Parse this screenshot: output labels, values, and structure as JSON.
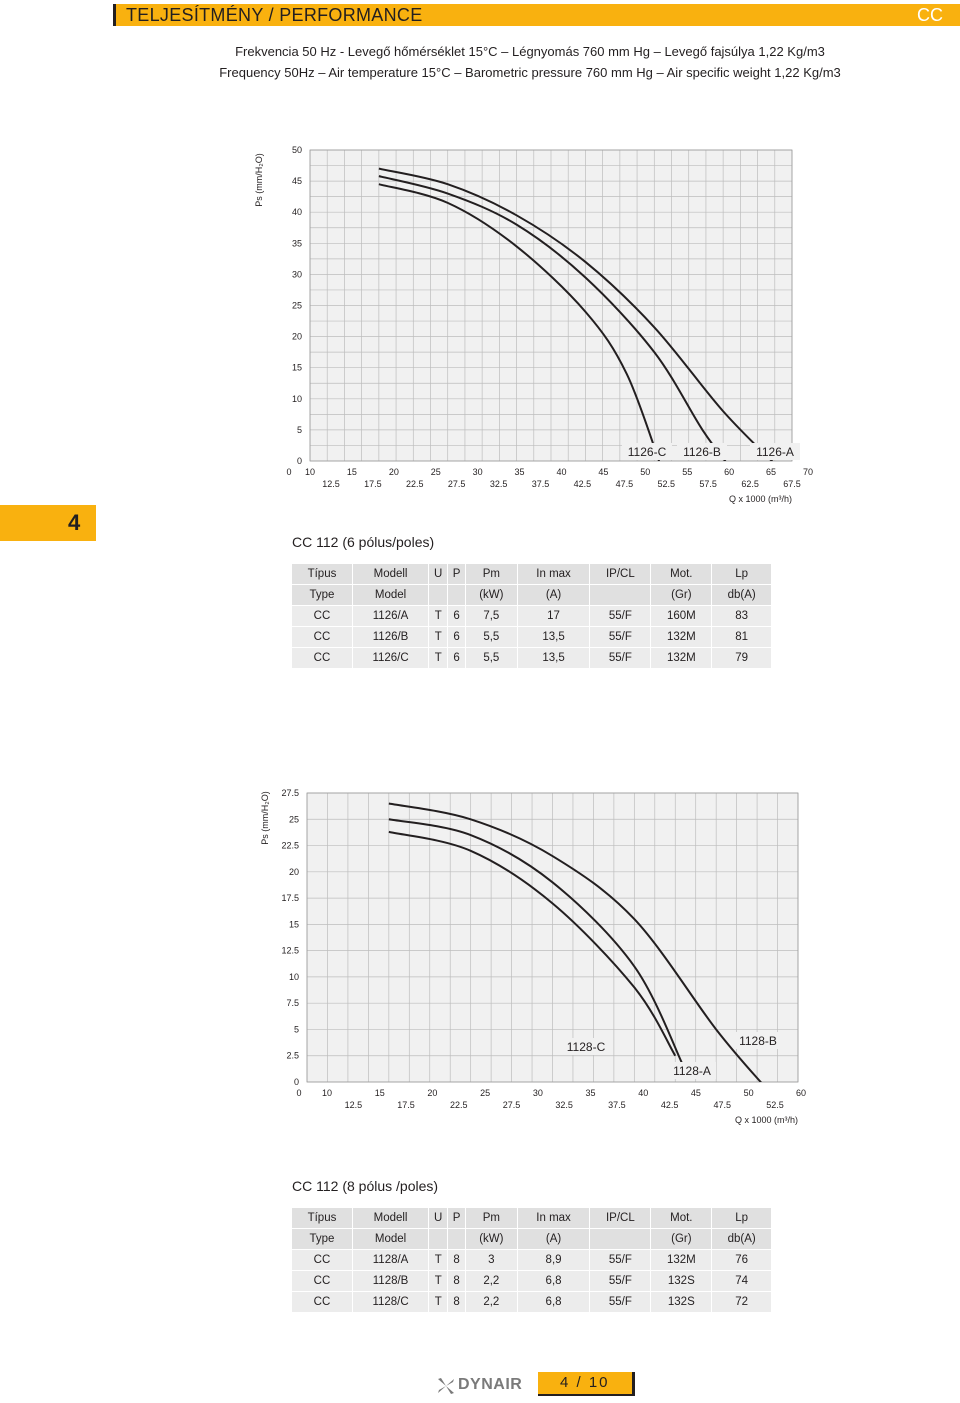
{
  "header": {
    "title": "TELJESÍTMÉNY / PERFORMANCE",
    "code": "CC"
  },
  "subtitle": {
    "hu": "Frekvencia 50 Hz - Levegő hőmérséklet 15°C – Légnyomás 760 mm Hg – Levegő fajsúlya 1,22 Kg/m3",
    "en": "Frequency 50Hz – Air temperature 15°C – Barometric pressure 760 mm Hg – Air specific weight 1,22 Kg/m3"
  },
  "side_tab": {
    "label": "4"
  },
  "sections": {
    "s1": "CC 112 (6 pólus/poles)",
    "s2": "CC 112 (8 pólus /poles)"
  },
  "chart_data": [
    {
      "type": "line",
      "ylabel": "Ps (mm/H₂O)",
      "xlabel": "Q x 1000 (m³/h)",
      "xlim": [
        0,
        70
      ],
      "ylim": [
        0,
        50
      ],
      "x_ticks_major": [
        "0",
        "10",
        "15",
        "20",
        "25",
        "30",
        "35",
        "40",
        "45",
        "50",
        "55",
        "60",
        "65",
        "70"
      ],
      "x_ticks_minor": [
        "12.5",
        "17.5",
        "22.5",
        "27.5",
        "32.5",
        "37.5",
        "42.5",
        "47.5",
        "52.5",
        "57.5",
        "62.5",
        "67.5"
      ],
      "y_ticks": [
        "0",
        "5",
        "10",
        "15",
        "20",
        "25",
        "30",
        "35",
        "40",
        "45",
        "50"
      ],
      "grid": true,
      "series": [
        {
          "name": "1126-A",
          "x": [
            10,
            20,
            30,
            40,
            50,
            60,
            68
          ],
          "y": [
            47,
            44.5,
            39.5,
            32,
            21.5,
            8,
            -1
          ]
        },
        {
          "name": "1126-B",
          "x": [
            10,
            20,
            30,
            40,
            50,
            57,
            61
          ],
          "y": [
            45.8,
            43,
            38,
            29.5,
            17.5,
            5,
            -1
          ]
        },
        {
          "name": "1126-C",
          "x": [
            10,
            20,
            30,
            40,
            46,
            51
          ],
          "y": [
            44.5,
            41.5,
            34.5,
            24,
            14,
            -1
          ]
        }
      ],
      "annotations": [
        "1126-C",
        "1126-B",
        "1126-A"
      ]
    },
    {
      "type": "line",
      "ylabel": "Ps (mm/H₂O)",
      "xlabel": "Q x 1000 (m³/h)",
      "xlim": [
        0,
        60
      ],
      "ylim": [
        0,
        27.5
      ],
      "x_ticks_major": [
        "0",
        "10",
        "15",
        "20",
        "25",
        "30",
        "35",
        "40",
        "45",
        "50",
        "60"
      ],
      "x_ticks_minor": [
        "12.5",
        "17.5",
        "22.5",
        "27.5",
        "32.5",
        "37.5",
        "42.5",
        "47.5",
        "52.5"
      ],
      "y_ticks": [
        "0",
        "2.5",
        "5",
        "7.5",
        "10",
        "12.5",
        "15",
        "17.5",
        "20",
        "22.5",
        "25",
        "27.5"
      ],
      "grid": true,
      "series": [
        {
          "name": "1128-A",
          "x": [
            10,
            20,
            30,
            40,
            50,
            56
          ],
          "y": [
            26.5,
            25,
            21.5,
            15.5,
            5,
            -0.5
          ]
        },
        {
          "name": "1128-B",
          "x": [
            10,
            20,
            30,
            40,
            46
          ],
          "y": [
            25,
            23.5,
            19,
            11,
            1.5
          ]
        },
        {
          "name": "1128-C",
          "x": [
            10,
            20,
            30,
            40,
            45
          ],
          "y": [
            23.8,
            22,
            17,
            9,
            2.5
          ]
        }
      ],
      "annotations": [
        "1128-C",
        "1128-B",
        "1128-A"
      ]
    }
  ],
  "tables": {
    "t1": {
      "header1": [
        "Típus",
        "Modell",
        "U",
        "P",
        "Pm",
        "In max",
        "IP/CL",
        "Mot.",
        "Lp"
      ],
      "header2": [
        "Type",
        "Model",
        "",
        "",
        "(kW)",
        "(A)",
        "",
        "(Gr)",
        "db(A)"
      ],
      "rows": [
        [
          "CC",
          "1126/A",
          "T",
          "6",
          "7,5",
          "17",
          "55/F",
          "160M",
          "83"
        ],
        [
          "CC",
          "1126/B",
          "T",
          "6",
          "5,5",
          "13,5",
          "55/F",
          "132M",
          "81"
        ],
        [
          "CC",
          "1126/C",
          "T",
          "6",
          "5,5",
          "13,5",
          "55/F",
          "132M",
          "79"
        ]
      ]
    },
    "t2": {
      "header1": [
        "Típus",
        "Modell",
        "U",
        "P",
        "Pm",
        "In max",
        "IP/CL",
        "Mot.",
        "Lp"
      ],
      "header2": [
        "Type",
        "Model",
        "",
        "",
        "(kW)",
        "(A)",
        "",
        "(Gr)",
        "db(A)"
      ],
      "rows": [
        [
          "CC",
          "1128/A",
          "T",
          "8",
          "3",
          "8,9",
          "55/F",
          "132M",
          "76"
        ],
        [
          "CC",
          "1128/B",
          "T",
          "8",
          "2,2",
          "6,8",
          "55/F",
          "132S",
          "74"
        ],
        [
          "CC",
          "1128/C",
          "T",
          "8",
          "2,2",
          "6,8",
          "55/F",
          "132S",
          "72"
        ]
      ]
    }
  },
  "footer": {
    "logo": "DYNAIR",
    "page": "4 / 10"
  }
}
